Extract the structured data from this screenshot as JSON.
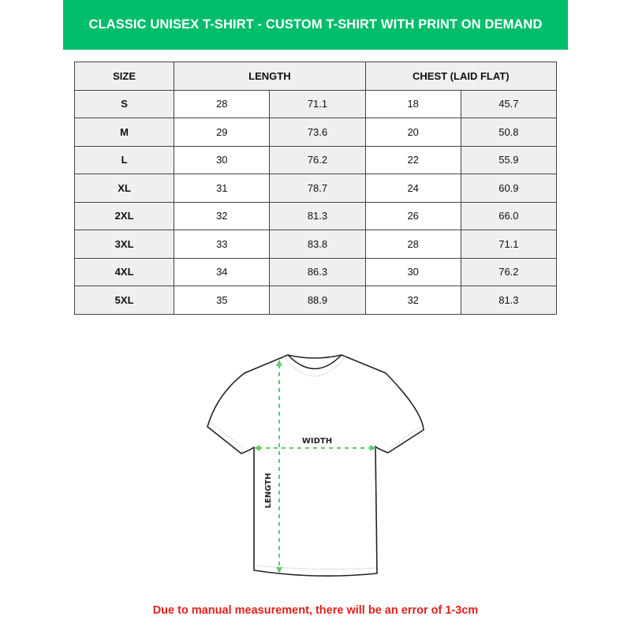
{
  "title": "CLASSIC UNISEX T-SHIRT - CUSTOM T-SHIRT WITH PRINT ON DEMAND",
  "colors": {
    "banner": "#00bd6a",
    "arrow": "#5ccf6a",
    "note": "#e0201c"
  },
  "table": {
    "headers": [
      "SIZE",
      "LENGTH",
      "CHEST (LAID FLAT)"
    ],
    "rows": [
      {
        "size": "S",
        "length_in": "28",
        "length_cm": "71.1",
        "chest_in": "18",
        "chest_cm": "45.7"
      },
      {
        "size": "M",
        "length_in": "29",
        "length_cm": "73.6",
        "chest_in": "20",
        "chest_cm": "50.8"
      },
      {
        "size": "L",
        "length_in": "30",
        "length_cm": "76.2",
        "chest_in": "22",
        "chest_cm": "55.9"
      },
      {
        "size": "XL",
        "length_in": "31",
        "length_cm": "78.7",
        "chest_in": "24",
        "chest_cm": "60.9"
      },
      {
        "size": "2XL",
        "length_in": "32",
        "length_cm": "81.3",
        "chest_in": "26",
        "chest_cm": "66.0"
      },
      {
        "size": "3XL",
        "length_in": "33",
        "length_cm": "83.8",
        "chest_in": "28",
        "chest_cm": "71.1"
      },
      {
        "size": "4XL",
        "length_in": "34",
        "length_cm": "86.3",
        "chest_in": "30",
        "chest_cm": "76.2"
      },
      {
        "size": "5XL",
        "length_in": "35",
        "length_cm": "88.9",
        "chest_in": "32",
        "chest_cm": "81.3"
      }
    ]
  },
  "diagram": {
    "width_label": "WIDTH",
    "length_label": "LENGTH"
  },
  "note": "Due to manual measurement, there will be an error of 1-3cm"
}
